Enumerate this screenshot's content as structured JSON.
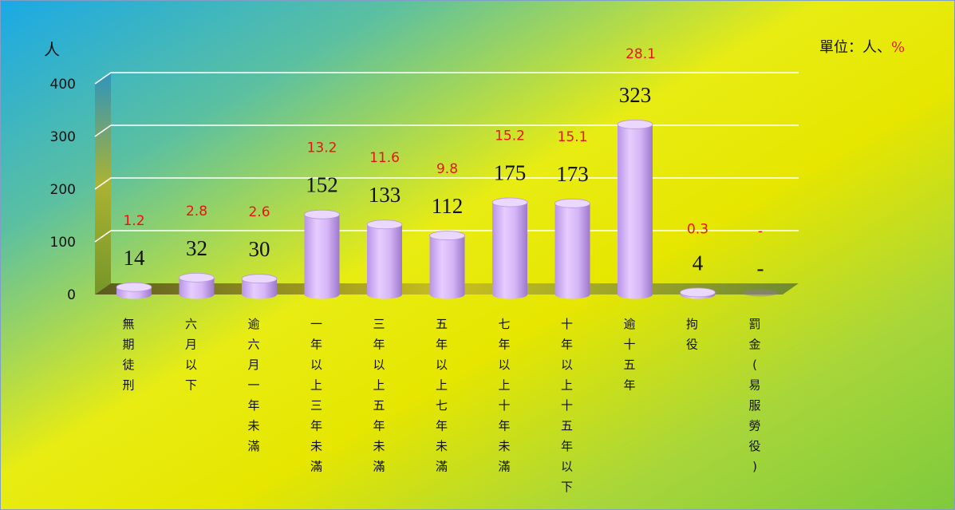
{
  "chart_data": {
    "type": "bar",
    "y_unit_label": "人",
    "unit_note": "單位：人、",
    "unit_note_pct": "%",
    "ylim": [
      0,
      400
    ],
    "yticks": [
      "0",
      "100",
      "200",
      "300",
      "400"
    ],
    "categories": [
      "無期徒刑",
      "六月以下",
      "逾六月一年未滿",
      "一年以上三年未滿",
      "三年以上五年未滿",
      "五年以上七年未滿",
      "七年以上十年未滿",
      "十年以上十五年以下",
      "逾十五年",
      "拘役",
      "罰金(易服勞役)"
    ],
    "values": [
      14,
      32,
      30,
      152,
      133,
      112,
      175,
      173,
      323,
      4,
      0
    ],
    "value_labels": [
      "14",
      "32",
      "30",
      "152",
      "133",
      "112",
      "175",
      "173",
      "323",
      "4",
      "-"
    ],
    "percent_labels": [
      "1.2",
      "2.8",
      "2.6",
      "13.2",
      "11.6",
      "9.8",
      "15.2",
      "15.1",
      "28.1",
      "0.3",
      "-"
    ],
    "grid": true,
    "colors": {
      "bar": "#d9b8f5",
      "bar_dark": "#9a72c8",
      "pct": "#ee1111"
    }
  }
}
